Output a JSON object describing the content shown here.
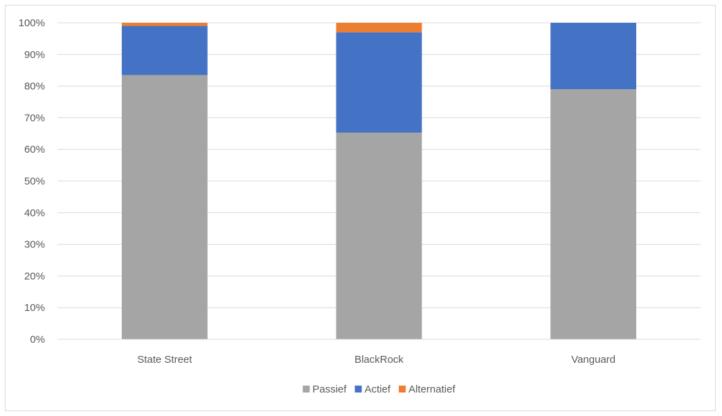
{
  "chart_data": {
    "type": "bar",
    "stacked": true,
    "categories": [
      "State Street",
      "BlackRock",
      "Vanguard"
    ],
    "series": [
      {
        "name": "Passief",
        "values": [
          83.5,
          65.3,
          79.0
        ],
        "color": "#a5a5a5"
      },
      {
        "name": "Actief",
        "values": [
          15.5,
          31.7,
          21.0
        ],
        "color": "#4472c4"
      },
      {
        "name": "Alternatief",
        "values": [
          1.0,
          3.0,
          0.0
        ],
        "color": "#ed7d31"
      }
    ],
    "y_ticks": [
      "0%",
      "10%",
      "20%",
      "30%",
      "40%",
      "50%",
      "60%",
      "70%",
      "80%",
      "90%",
      "100%"
    ],
    "ylim": [
      0,
      100
    ],
    "grid": true,
    "legend_position": "bottom"
  }
}
